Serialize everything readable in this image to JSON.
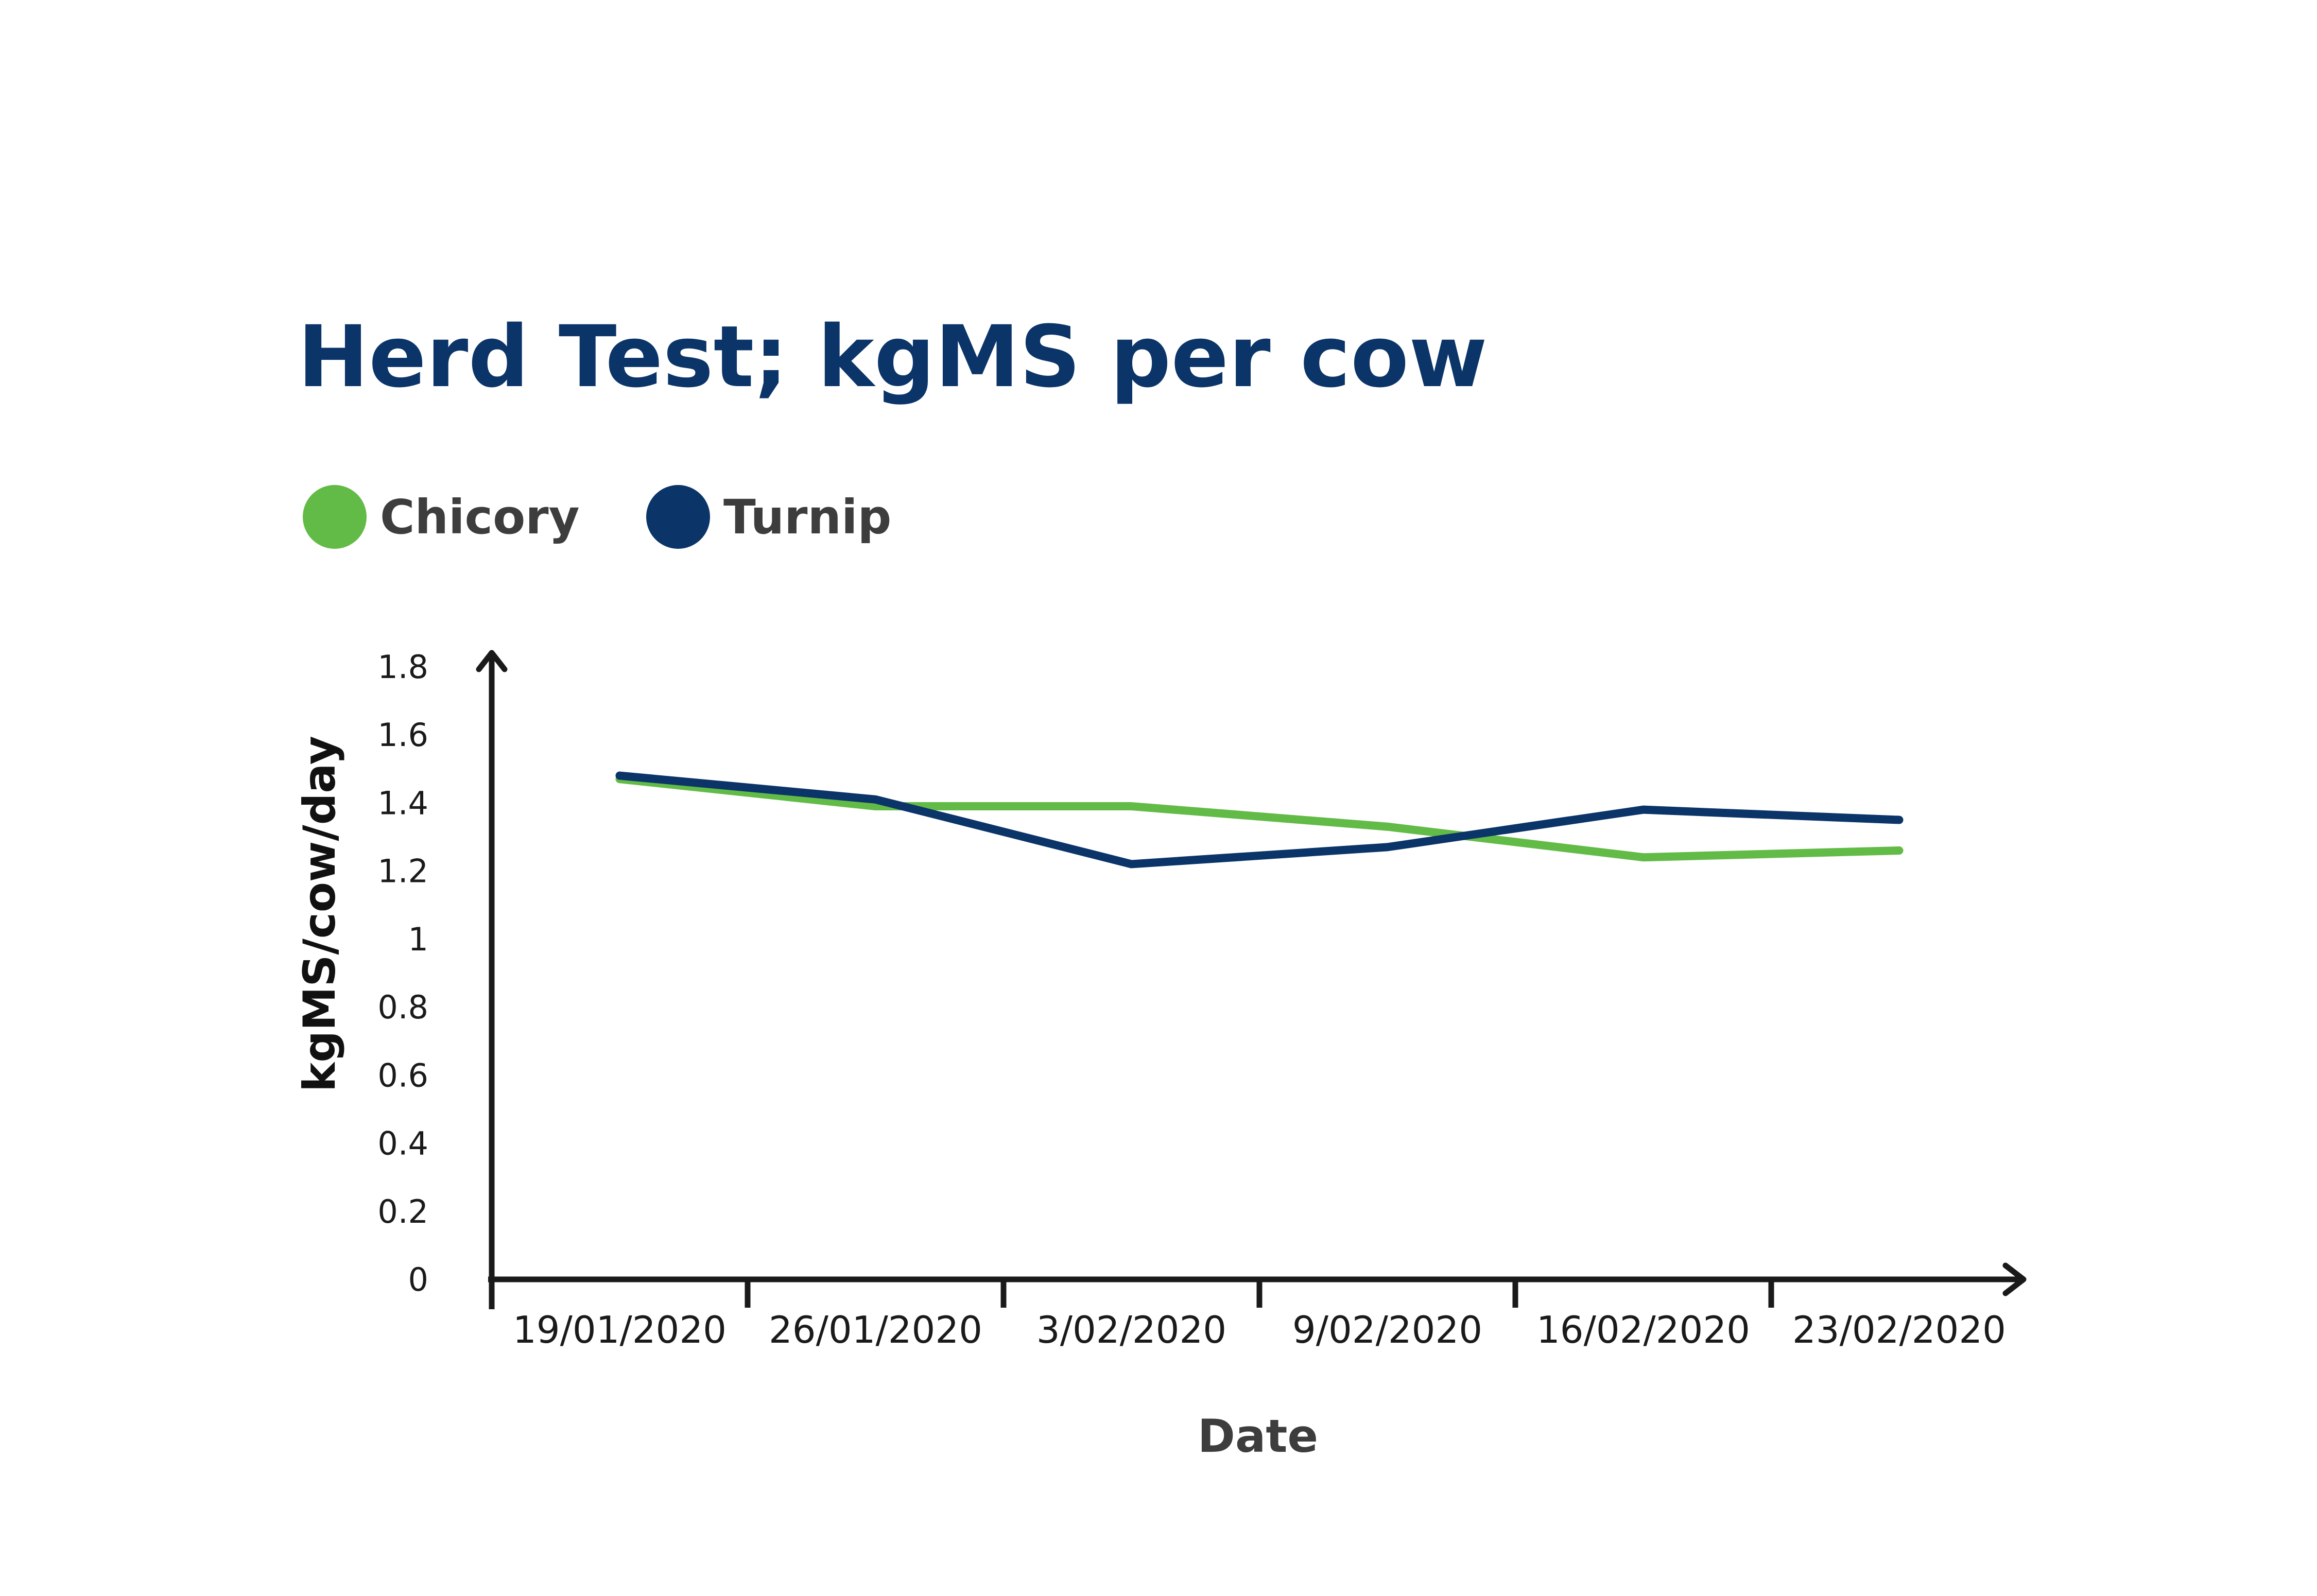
{
  "chart_data": {
    "type": "line",
    "title": "Herd Test; kgMS per cow",
    "xlabel": "Date",
    "ylabel": "kgMS/cow/day",
    "categories": [
      "19/01/2020",
      "26/01/2020",
      "3/02/2020",
      "9/02/2020",
      "16/02/2020",
      "23/02/2020"
    ],
    "y_ticks": [
      "0",
      "0.2",
      "0.4",
      "0.6",
      "0.8",
      "1",
      "1.2",
      "1.4",
      "1.6",
      "1.8"
    ],
    "ylim": [
      0,
      1.8
    ],
    "grid": false,
    "legend_position": "top-left",
    "series": [
      {
        "name": "Chicory",
        "color": "#62bb46",
        "values": [
          1.47,
          1.39,
          1.39,
          1.33,
          1.24,
          1.26
        ]
      },
      {
        "name": "Turnip",
        "color": "#0b3468",
        "values": [
          1.48,
          1.41,
          1.22,
          1.27,
          1.38,
          1.35
        ]
      }
    ]
  }
}
